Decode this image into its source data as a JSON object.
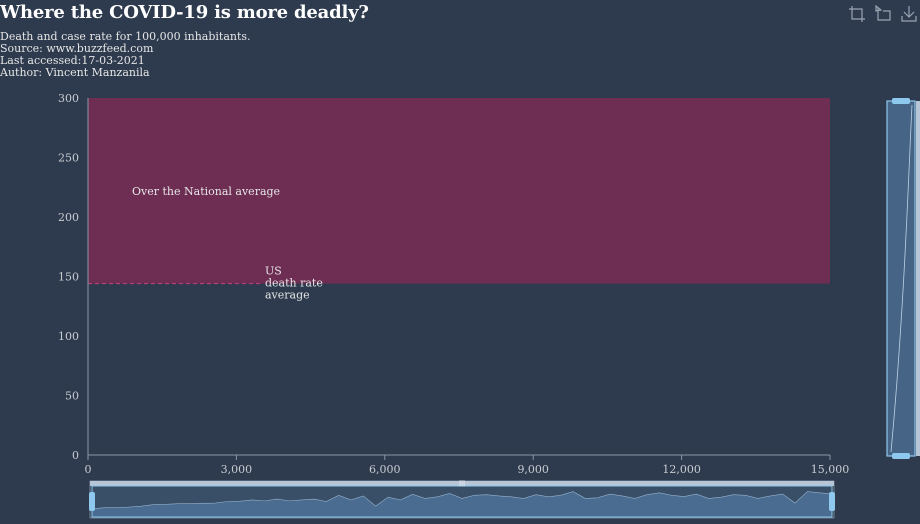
{
  "title": "Where the COVID-19 is more deadly?",
  "subtitle_lines": [
    "Death and case rate for 100,000 inhabitants.",
    "Source: www.buzzfeed.com",
    "Last accessed:17-03-2021",
    "Author: Vincent Manzanila"
  ],
  "toolbox": {
    "icons": [
      "zoom-icon",
      "zoom-reset-icon",
      "save-image-icon"
    ]
  },
  "colors": {
    "background": "#2e3b4e",
    "mark_area": "#6e2d52",
    "mark_line": "#c3427f",
    "axis": "#8b97a8",
    "datazoom_fill": "#4a6e93",
    "datazoom_handle": "#8fc8ee"
  },
  "chart_data": {
    "type": "scatter",
    "xlim": [
      0,
      15000
    ],
    "ylim": [
      0,
      300
    ],
    "x_ticks": [
      0,
      3000,
      6000,
      9000,
      12000,
      15000
    ],
    "x_tick_labels": [
      "0",
      "3,000",
      "6,000",
      "9,000",
      "12,000",
      "15,000"
    ],
    "y_ticks": [
      0,
      50,
      100,
      150,
      200,
      250,
      300
    ],
    "y_tick_labels": [
      "0",
      "50",
      "100",
      "150",
      "200",
      "250",
      "300"
    ],
    "grid": false,
    "mark_area": {
      "y_from": 144,
      "y_to": 300,
      "label": "Over the National average"
    },
    "mark_line": {
      "y": 144,
      "label_lines": [
        "US",
        "death rate",
        "average"
      ]
    },
    "series": [],
    "data_zoom": {
      "x_range": [
        0,
        1
      ],
      "y_range": [
        0,
        1
      ],
      "preview": [
        0.26,
        0.3,
        0.3,
        0.32,
        0.35,
        0.4,
        0.41,
        0.43,
        0.43,
        0.44,
        0.45,
        0.5,
        0.51,
        0.55,
        0.52,
        0.58,
        0.52,
        0.55,
        0.58,
        0.5,
        0.7,
        0.55,
        0.68,
        0.35,
        0.64,
        0.55,
        0.73,
        0.6,
        0.65,
        0.76,
        0.6,
        0.7,
        0.72,
        0.68,
        0.65,
        0.6,
        0.72,
        0.65,
        0.7,
        0.82,
        0.6,
        0.62,
        0.74,
        0.68,
        0.6,
        0.72,
        0.78,
        0.7,
        0.66,
        0.74,
        0.6,
        0.64,
        0.72,
        0.7,
        0.6,
        0.68,
        0.74,
        0.45,
        0.82,
        0.78,
        0.74
      ]
    }
  }
}
